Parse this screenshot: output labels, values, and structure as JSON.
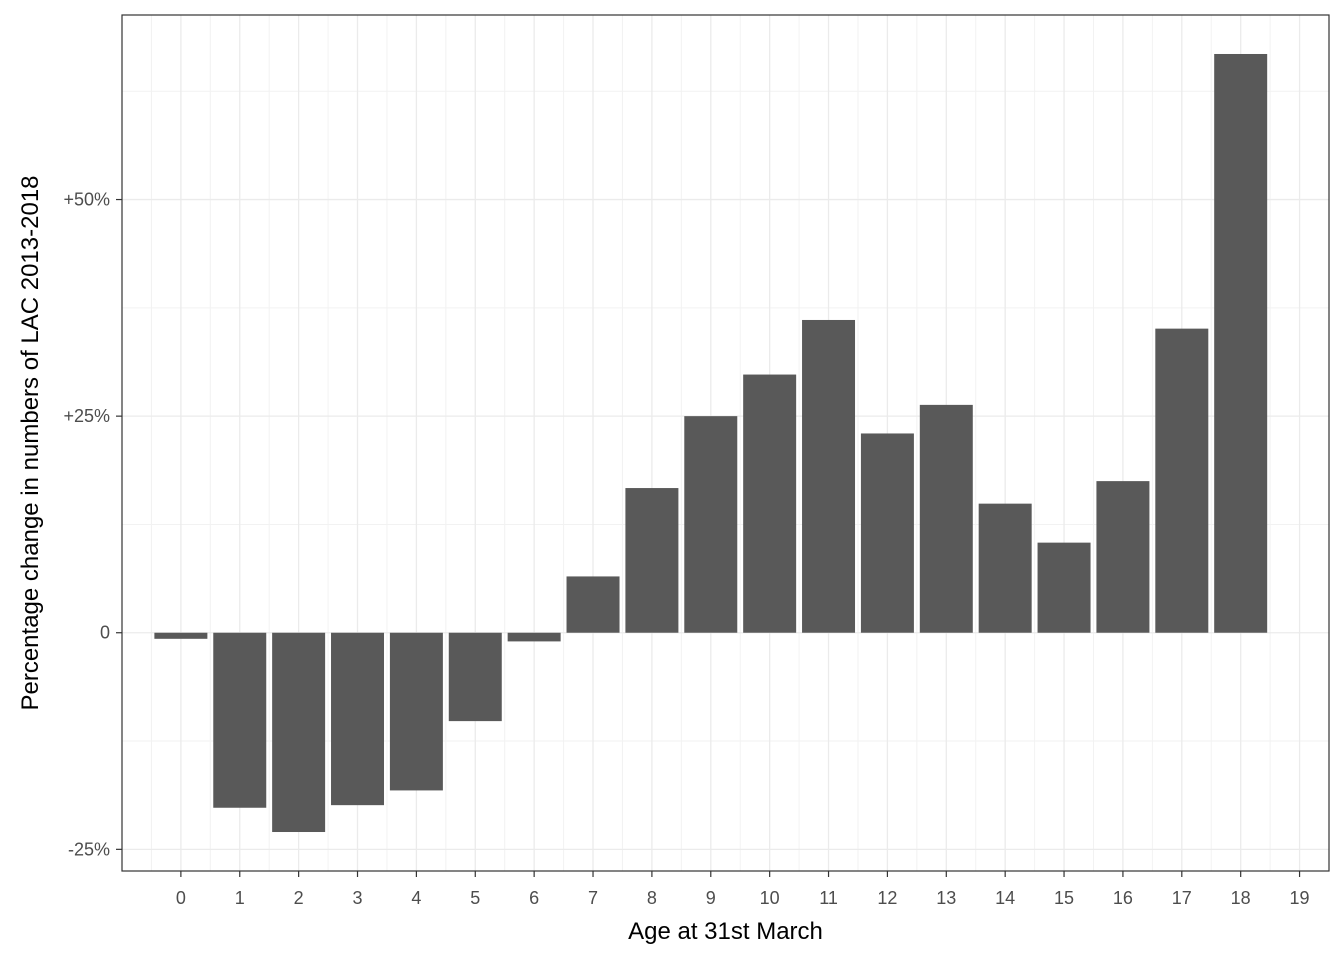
{
  "chart_data": {
    "type": "bar",
    "xlabel": "Age at 31st March",
    "ylabel": "Percentage change in numbers of LAC 2013-2018",
    "categories": [
      "0",
      "1",
      "2",
      "3",
      "4",
      "5",
      "6",
      "7",
      "8",
      "9",
      "10",
      "11",
      "12",
      "13",
      "14",
      "15",
      "16",
      "17",
      "18"
    ],
    "values": [
      -0.7,
      -20.2,
      -23.0,
      -19.9,
      -18.2,
      -10.2,
      -1.0,
      6.5,
      16.7,
      25.0,
      29.8,
      36.1,
      23.0,
      26.3,
      14.9,
      10.4,
      17.5,
      35.1,
      66.8
    ],
    "x_ticks": [
      "0",
      "1",
      "2",
      "3",
      "4",
      "5",
      "6",
      "7",
      "8",
      "9",
      "10",
      "11",
      "12",
      "13",
      "14",
      "15",
      "16",
      "17",
      "18",
      "19"
    ],
    "y_ticks": [
      {
        "value": -25,
        "label": "-25%"
      },
      {
        "value": 0,
        "label": "0"
      },
      {
        "value": 25,
        "label": "+25%"
      },
      {
        "value": 50,
        "label": "+50%"
      }
    ],
    "xlim": [
      -1,
      19.5
    ],
    "ylim": [
      -27.5,
      71.3
    ],
    "grid": true,
    "bar_color": "#595959"
  }
}
